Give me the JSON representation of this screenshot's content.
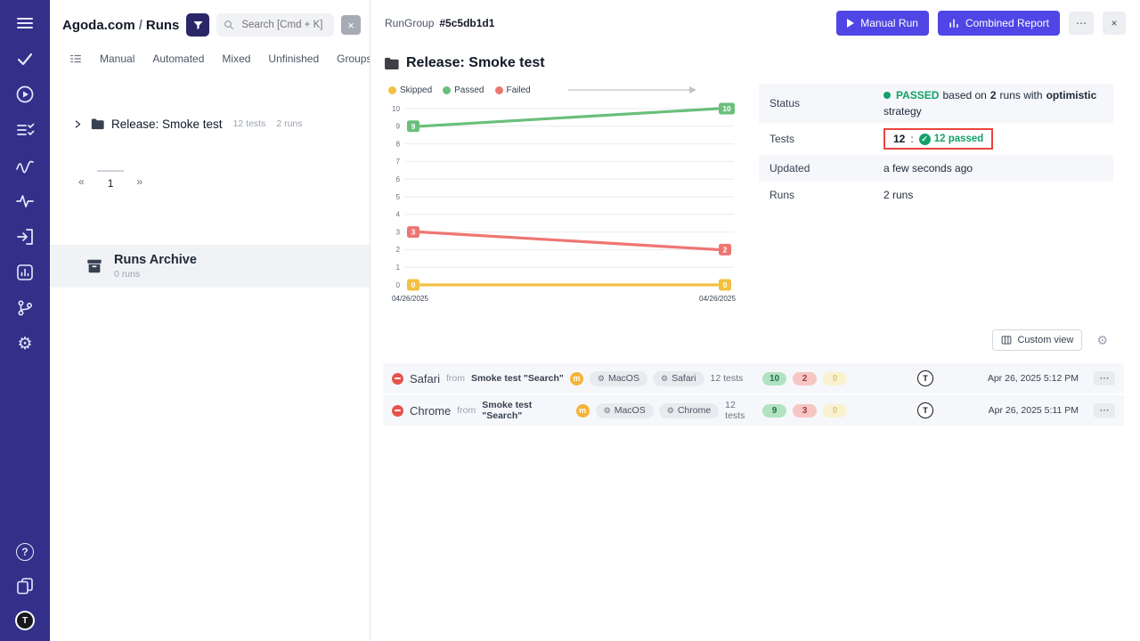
{
  "colors": {
    "sidebar_bg": "#33308a",
    "accent_indigo": "#4f46e5",
    "passed_green": "#13a169",
    "failed_red": "#e5534b",
    "skipped_yellow": "#f2c043",
    "annotation_red": "#e8453c"
  },
  "left_panel": {
    "project": "Agoda.com",
    "separator": "/",
    "section": "Runs",
    "search_placeholder": "Search [Cmd + K]",
    "close_glyph": "×",
    "tabs": [
      "Manual",
      "Automated",
      "Mixed",
      "Unfinished",
      "Groups"
    ],
    "tree": {
      "name": "Release: Smoke test",
      "tests_meta": "12 tests",
      "runs_meta": "2 runs"
    },
    "pagination": {
      "prev": "«",
      "page": "1",
      "next": "»"
    },
    "archive": {
      "title": "Runs Archive",
      "count": "0 runs"
    }
  },
  "header": {
    "rungroup_label": "RunGroup",
    "rungroup_id": "#5c5db1d1",
    "manual_run_label": "Manual Run",
    "combined_report_label": "Combined Report",
    "more_glyph": "⋯",
    "close_glyph": "×"
  },
  "main": {
    "title": "Release: Smoke test",
    "custom_view_label": "Custom view",
    "gear_glyph": "⚙",
    "avatar_initial": "T"
  },
  "details": {
    "labels": [
      "Status",
      "Tests",
      "Updated",
      "Runs"
    ],
    "status": {
      "passed": "PASSED",
      "based_on": "based on",
      "runs_count": "2",
      "runs_with": "runs with",
      "strategy_name": "optimistic",
      "strategy_word": "strategy"
    },
    "tests": {
      "total": "12",
      "colon": ":",
      "check_glyph": "✓",
      "passed_badge": "12 passed"
    },
    "updated": "a few seconds ago",
    "runs": "2 runs"
  },
  "chart_data": {
    "type": "line",
    "x": [
      "04/26/2025",
      "04/26/2025"
    ],
    "series": [
      {
        "name": "Skipped",
        "color": "#f2c043",
        "values": [
          0,
          0
        ]
      },
      {
        "name": "Passed",
        "color": "#6abf7b",
        "values": [
          9,
          10
        ]
      },
      {
        "name": "Failed",
        "color": "#ee7672",
        "values": [
          3,
          2
        ]
      }
    ],
    "ylim": [
      0,
      10
    ],
    "yticks": [
      0,
      1,
      2,
      3,
      4,
      5,
      6,
      7,
      8,
      9,
      10
    ],
    "grid": true,
    "legend_position": "top"
  },
  "runs": [
    {
      "status": "failed",
      "browser": "Safari",
      "from_label": "from",
      "source": "Smoke test \"Search\"",
      "mode_badge": "m",
      "env": [
        "MacOS",
        "Safari"
      ],
      "tests_count": "12 tests",
      "passed": "10",
      "failed": "2",
      "skipped": "0",
      "avatar_initial": "T",
      "date": "Apr 26, 2025 5:12 PM",
      "more_glyph": "⋯"
    },
    {
      "status": "failed",
      "browser": "Chrome",
      "from_label": "from",
      "source": "Smoke test \"Search\"",
      "mode_badge": "m",
      "env": [
        "MacOS",
        "Chrome"
      ],
      "tests_count": "12 tests",
      "passed": "9",
      "failed": "3",
      "skipped": "0",
      "avatar_initial": "T",
      "date": "Apr 26, 2025 5:11 PM",
      "more_glyph": "⋯"
    }
  ]
}
